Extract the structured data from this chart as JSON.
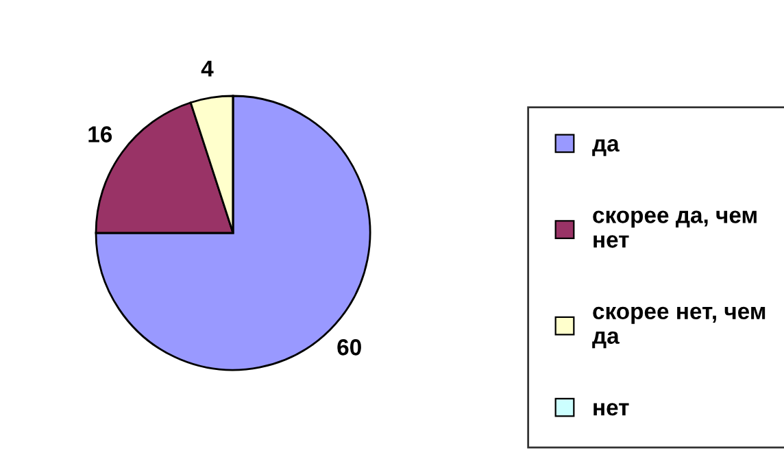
{
  "chart_data": {
    "type": "pie",
    "categories": [
      "да",
      "скорее да, чем нет",
      "скорее нет, чем да",
      "нет"
    ],
    "values": [
      60,
      16,
      4,
      0
    ],
    "colors": [
      "#9999ff",
      "#993366",
      "#ffffcc",
      "#ccffff"
    ],
    "value_labels": [
      "60",
      "16",
      "4",
      null
    ],
    "legend": "right"
  }
}
